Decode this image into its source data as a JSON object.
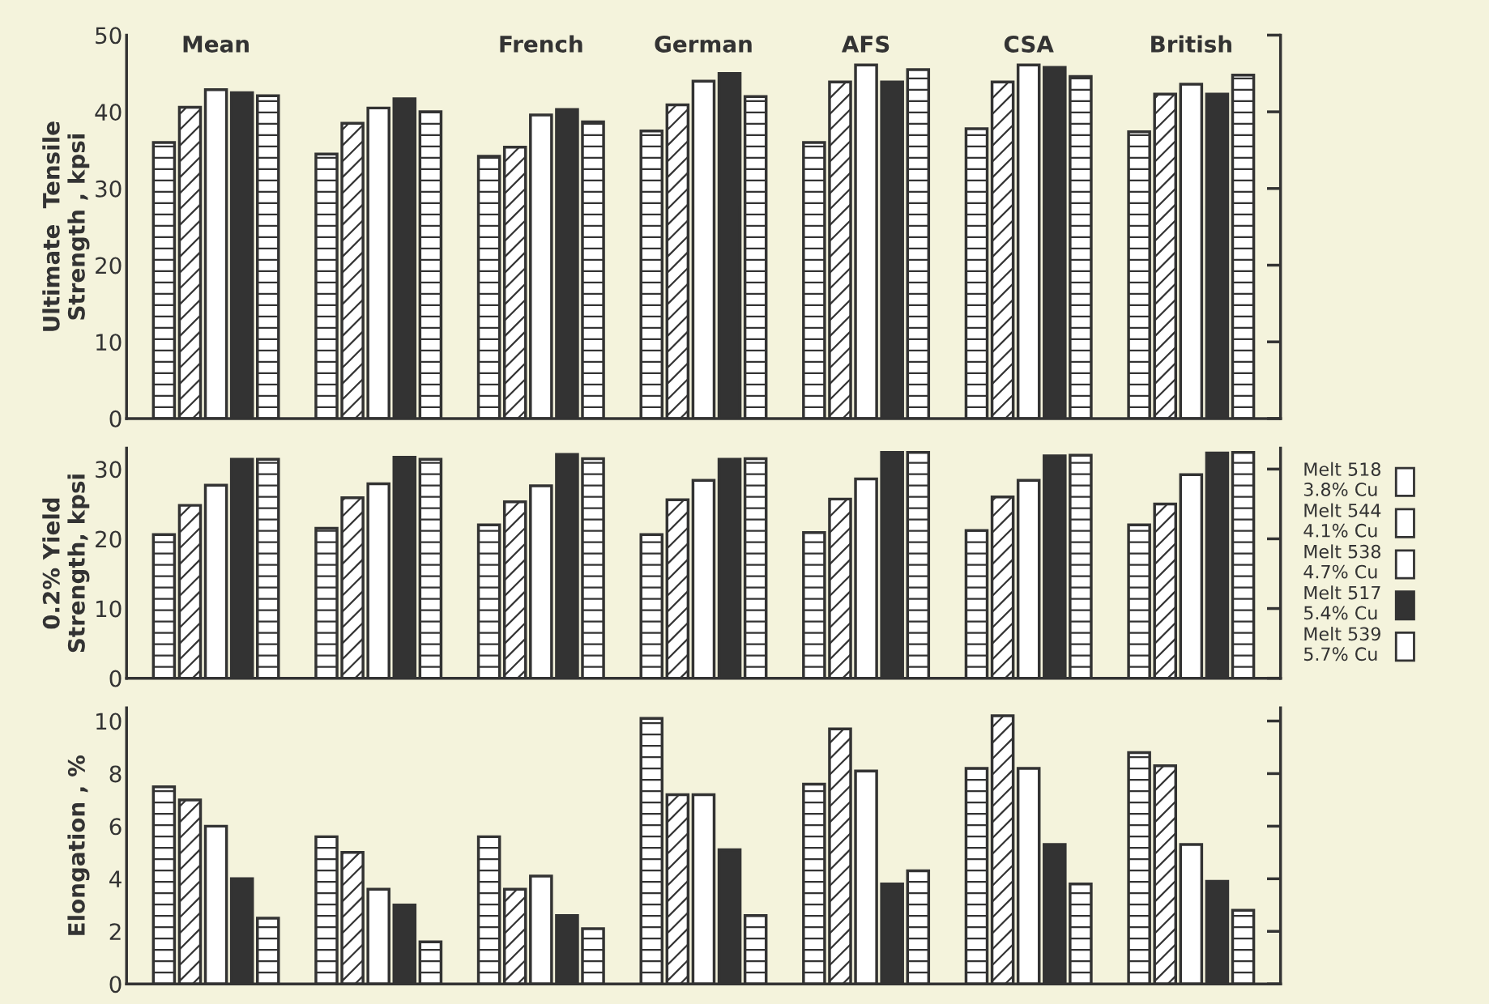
{
  "chart_data": [
    {
      "type": "bar",
      "ylabel": "Ultimate  Tensile\nStrength , kpsi",
      "categories": [
        "Mean",
        null,
        "French",
        "German",
        "AFS",
        "CSA",
        "British"
      ],
      "ylim": [
        0,
        50
      ],
      "yticks": [
        0,
        10,
        20,
        30,
        40,
        50
      ],
      "grid": false,
      "series": [
        {
          "color": "#ffffff",
          "values": [
            36,
            34.5,
            34.2,
            37.5,
            36,
            37.8,
            37.4
          ]
        },
        {
          "color": "#ffffff",
          "values": [
            40.6,
            38.5,
            35.4,
            40.9,
            43.9,
            43.9,
            42.3
          ]
        },
        {
          "color": "#ffffff",
          "values": [
            42.9,
            40.5,
            39.6,
            44,
            46.1,
            46.1,
            43.6
          ]
        },
        {
          "color": "#333333",
          "values": [
            42.5,
            41.7,
            40.3,
            45,
            43.9,
            45.8,
            42.3
          ]
        },
        {
          "color": "#ffffff",
          "values": [
            42.1,
            40,
            38.7,
            42,
            45.5,
            44.6,
            44.8
          ]
        }
      ]
    },
    {
      "type": "bar",
      "ylabel": "0.2% Yield\nStrength, kpsi",
      "categories": [
        null,
        null,
        null,
        null,
        null,
        null,
        null
      ],
      "ylim": [
        0,
        33
      ],
      "yticks": [
        0,
        10,
        20,
        30
      ],
      "legend": "right",
      "tick_labels": "y",
      "grid": false,
      "series": [
        {
          "name": "Melt 518\n3.8% Cu",
          "color": "#ffffff",
          "values": [
            20.6,
            21.5,
            22,
            20.6,
            20.9,
            21.2,
            22
          ]
        },
        {
          "name": "Melt 544\n4.1% Cu",
          "color": "#ffffff",
          "values": [
            24.8,
            25.9,
            25.3,
            25.6,
            25.7,
            26,
            25
          ]
        },
        {
          "name": "Melt 538\n4.7% Cu",
          "color": "#ffffff",
          "values": [
            27.7,
            27.9,
            27.6,
            28.4,
            28.6,
            28.4,
            29.2
          ]
        },
        {
          "name": "Melt 517\n5.4% Cu",
          "color": "#333333",
          "values": [
            31.4,
            31.7,
            32.1,
            31.4,
            32.4,
            31.9,
            32.3
          ]
        },
        {
          "name": "Melt 539\n5.7% Cu",
          "color": "#ffffff",
          "values": [
            31.4,
            31.4,
            31.5,
            31.5,
            32.4,
            32,
            32.4
          ]
        }
      ]
    },
    {
      "type": "bar",
      "ylabel": "Elongation , %",
      "categories": [
        null,
        null,
        null,
        null,
        null,
        null,
        null
      ],
      "ylim": [
        0,
        10.5
      ],
      "yticks": [
        0,
        2,
        4,
        6,
        8,
        10
      ],
      "tick_labels": "y",
      "grid": false,
      "series": [
        {
          "color": "#ffffff",
          "values": [
            7.5,
            5.6,
            5.6,
            10.1,
            7.6,
            8.2,
            8.8
          ]
        },
        {
          "color": "#ffffff",
          "values": [
            7.0,
            5.0,
            3.6,
            7.2,
            9.7,
            10.2,
            8.3
          ]
        },
        {
          "color": "#ffffff",
          "values": [
            6.0,
            3.6,
            4.1,
            7.2,
            8.1,
            8.2,
            5.3
          ]
        },
        {
          "color": "#333333",
          "values": [
            4.0,
            3.0,
            2.6,
            5.1,
            3.8,
            5.3,
            3.9
          ]
        },
        {
          "color": "#ffffff",
          "values": [
            2.5,
            1.6,
            2.1,
            2.6,
            4.3,
            3.8,
            2.8
          ]
        }
      ]
    }
  ]
}
